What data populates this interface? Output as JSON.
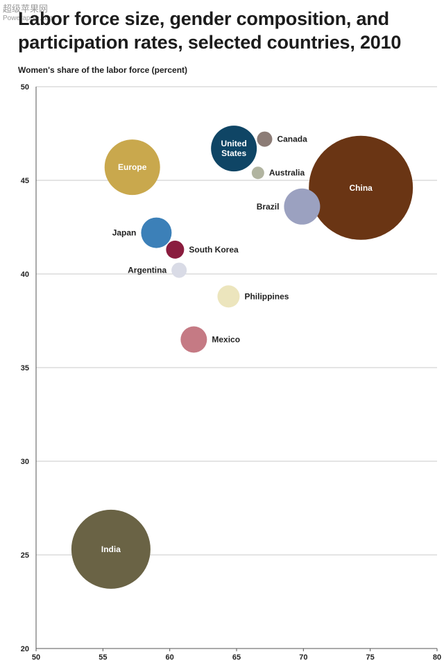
{
  "watermark": {
    "line1": "超级苹果网",
    "line2": "Powerapple.com"
  },
  "title_line1": "Labor force size, gender composition, and",
  "title_line2": "participation rates, selected countries, 2010",
  "chart_data": {
    "type": "scatter",
    "ylabel": "Women's share of the labor force (percent)",
    "xlabel": "",
    "xlim": [
      50,
      80
    ],
    "ylim": [
      20,
      50
    ],
    "xticks": [
      50,
      55,
      60,
      65,
      70,
      75,
      80
    ],
    "yticks": [
      20,
      25,
      30,
      35,
      40,
      45,
      50
    ],
    "grid": "horizontal",
    "points": [
      {
        "label": "Europe",
        "x": 57.2,
        "y": 45.7,
        "size": 40,
        "color": "#c9a84d",
        "label_pos": "inside"
      },
      {
        "label": "United\nStates",
        "x": 64.8,
        "y": 46.7,
        "size": 33,
        "color": "#0f4565",
        "label_pos": "inside"
      },
      {
        "label": "Canada",
        "x": 67.1,
        "y": 47.2,
        "size": 11,
        "color": "#8c7c76",
        "label_pos": "right"
      },
      {
        "label": "Australia",
        "x": 66.6,
        "y": 45.4,
        "size": 9,
        "color": "#b1b4a0",
        "label_pos": "right"
      },
      {
        "label": "China",
        "x": 74.3,
        "y": 44.6,
        "size": 75,
        "color": "#6a3514",
        "label_pos": "inside"
      },
      {
        "label": "Brazil",
        "x": 69.9,
        "y": 43.6,
        "size": 26,
        "color": "#9ba1c0",
        "label_pos": "left"
      },
      {
        "label": "Japan",
        "x": 59.0,
        "y": 42.2,
        "size": 22,
        "color": "#3c80b8",
        "label_pos": "left"
      },
      {
        "label": "South Korea",
        "x": 60.4,
        "y": 41.3,
        "size": 13,
        "color": "#8a1c3e",
        "label_pos": "right"
      },
      {
        "label": "Argentina",
        "x": 60.7,
        "y": 40.2,
        "size": 11,
        "color": "#d9dbe6",
        "label_pos": "left"
      },
      {
        "label": "Philippines",
        "x": 64.4,
        "y": 38.8,
        "size": 16,
        "color": "#ece5bd",
        "label_pos": "right"
      },
      {
        "label": "Mexico",
        "x": 61.8,
        "y": 36.5,
        "size": 19,
        "color": "#c57a84",
        "label_pos": "right"
      },
      {
        "label": "India",
        "x": 55.6,
        "y": 25.3,
        "size": 57,
        "color": "#6a6345",
        "label_pos": "inside"
      }
    ]
  }
}
